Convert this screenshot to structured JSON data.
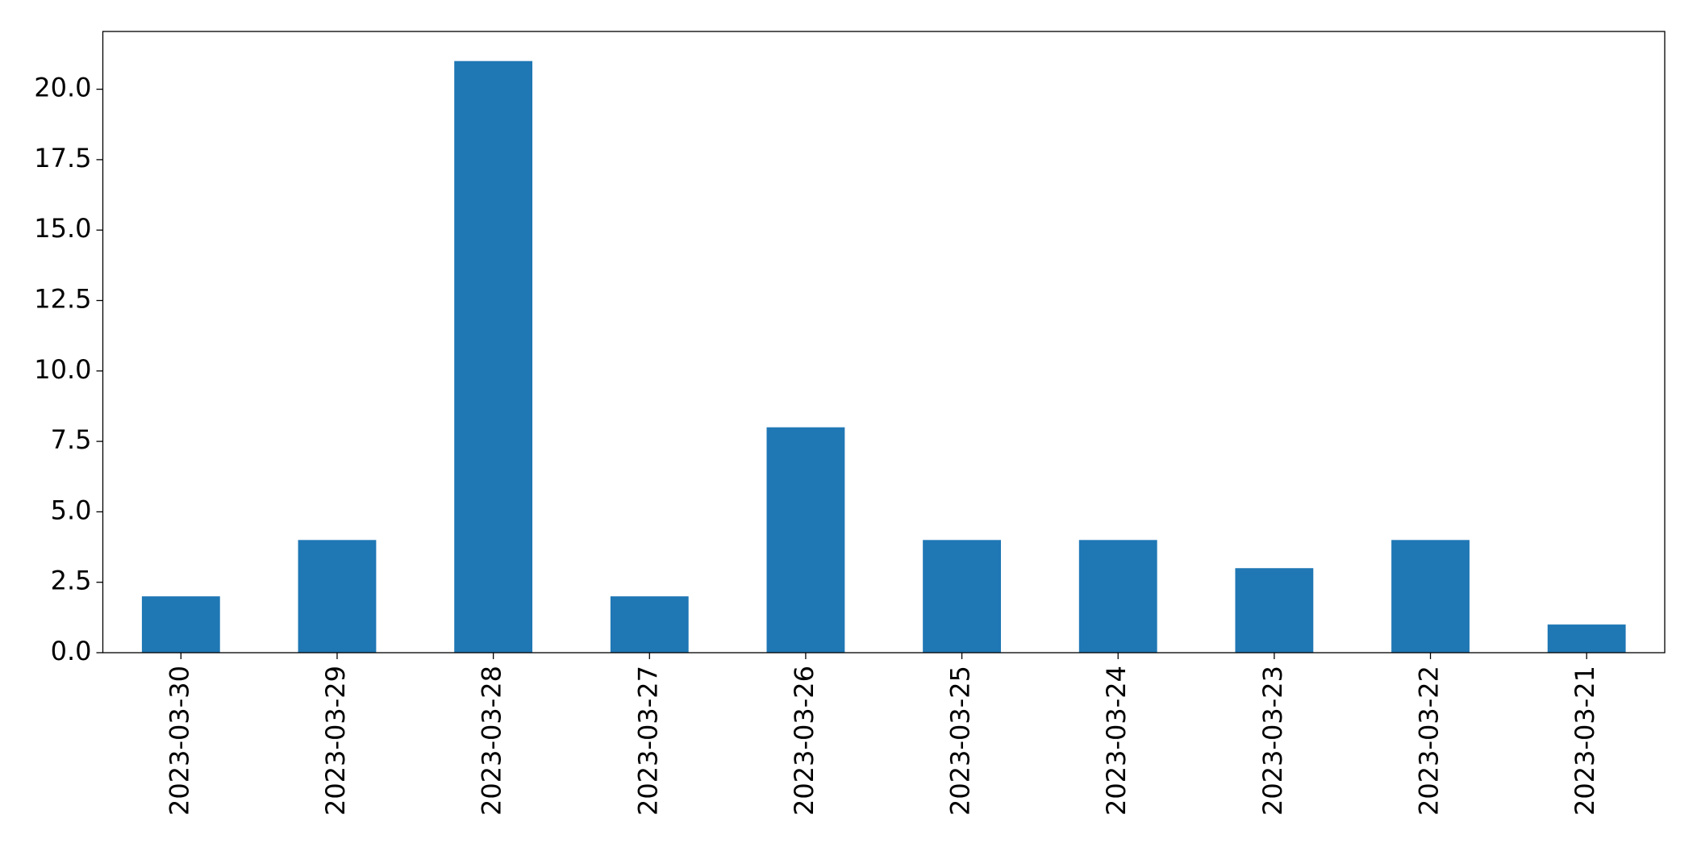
{
  "chart_data": {
    "type": "bar",
    "categories": [
      "2023-03-30",
      "2023-03-29",
      "2023-03-28",
      "2023-03-27",
      "2023-03-26",
      "2023-03-25",
      "2023-03-24",
      "2023-03-23",
      "2023-03-22",
      "2023-03-21"
    ],
    "values": [
      2,
      4,
      21,
      2,
      8,
      4,
      4,
      3,
      4,
      1
    ],
    "color": "#1f77b4",
    "ylim": [
      0,
      22.05
    ],
    "yticks": [
      {
        "value": 0,
        "label": "0.0"
      },
      2.5,
      {
        "value": 5,
        "label": "5.0"
      },
      7.5,
      {
        "value": 10,
        "label": "10.0"
      },
      12.5,
      {
        "value": 15,
        "label": "15.0"
      },
      17.5,
      {
        "value": 20,
        "label": "20.0"
      }
    ],
    "grid": false
  }
}
